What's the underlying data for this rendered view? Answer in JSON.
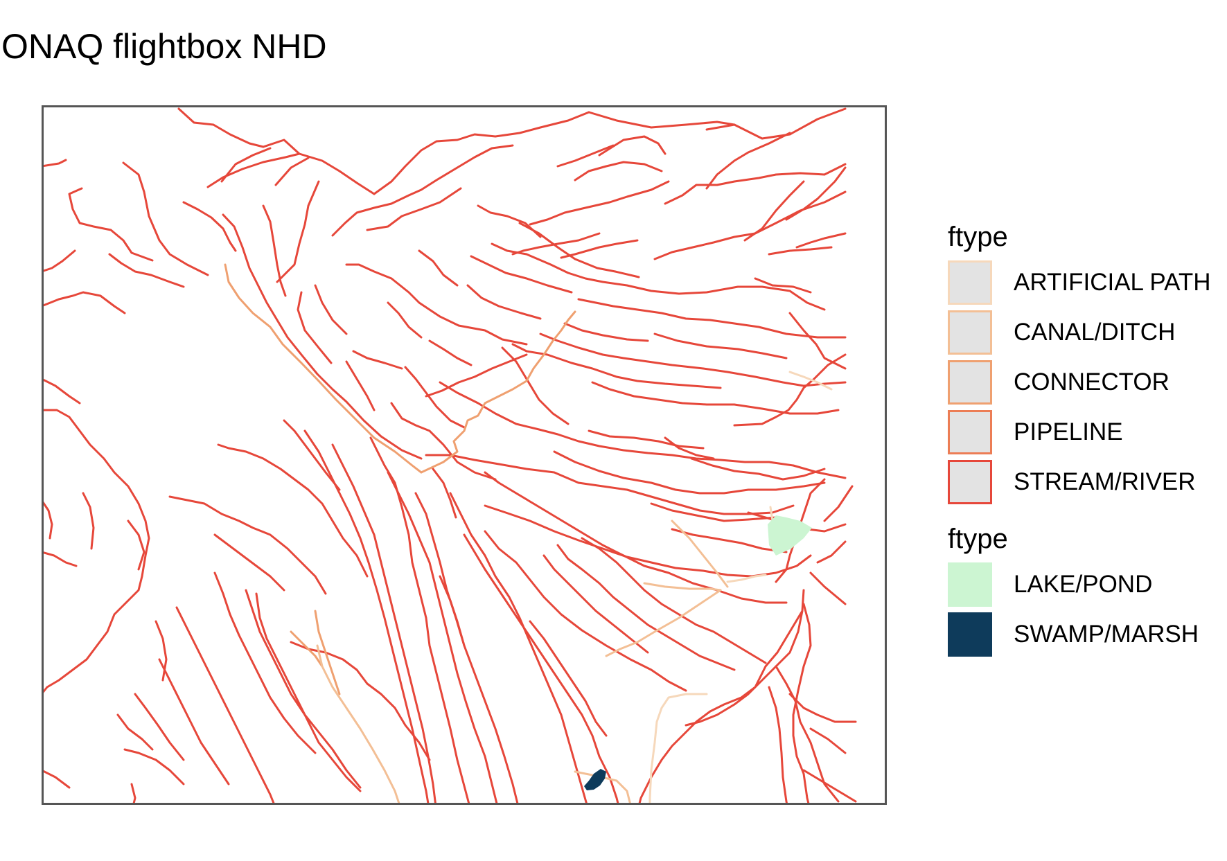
{
  "title": "ONAQ flightbox NHD",
  "legend": {
    "lines": {
      "title": "ftype",
      "items": [
        {
          "label": "ARTIFICIAL PATH",
          "color": "#f6d8bb"
        },
        {
          "label": "CANAL/DITCH",
          "color": "#f3bf95"
        },
        {
          "label": "CONNECTOR",
          "color": "#efa070"
        },
        {
          "label": "PIPELINE",
          "color": "#ec7d55"
        },
        {
          "label": "STREAM/RIVER",
          "color": "#e6473a"
        }
      ]
    },
    "areas": {
      "title": "ftype",
      "items": [
        {
          "label": "LAKE/POND",
          "color": "#ccf5d2"
        },
        {
          "label": "SWAMP/MARSH",
          "color": "#0e3b5b"
        }
      ]
    }
  },
  "colors": {
    "swatch_fill": "#e3e3e3",
    "panel_border": "#555555",
    "stream": "#e6473a",
    "connector": "#efa070",
    "canal": "#f3bf95",
    "artificial": "#f6d8bb",
    "lake": "#ccf5d2",
    "marsh": "#0e3b5b"
  }
}
